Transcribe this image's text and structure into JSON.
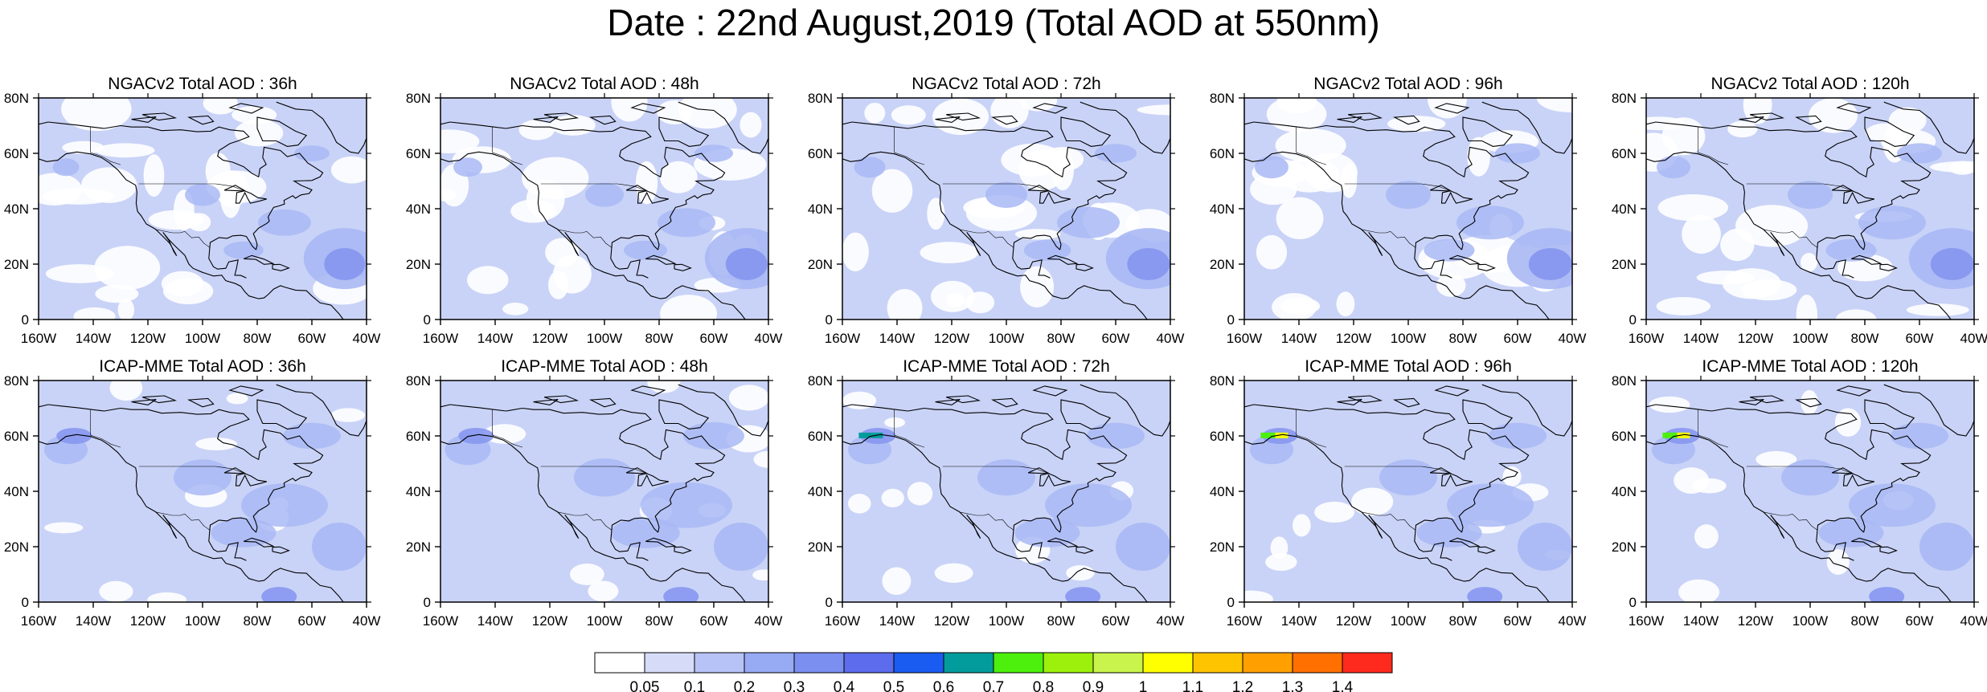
{
  "title": "Date : 22nd August,2019 (Total AOD at 550nm)",
  "panels": [
    {
      "title": "NGACv2 Total AOD : 36h",
      "model": "NGACv2",
      "lead": "36h",
      "hotspots": [],
      "intensity": 0.55
    },
    {
      "title": "NGACv2 Total AOD : 48h",
      "model": "NGACv2",
      "lead": "48h",
      "hotspots": [],
      "intensity": 0.6
    },
    {
      "title": "NGACv2 Total AOD : 72h",
      "model": "NGACv2",
      "lead": "72h",
      "hotspots": [],
      "intensity": 0.65
    },
    {
      "title": "NGACv2 Total AOD : 96h",
      "model": "NGACv2",
      "lead": "96h",
      "hotspots": [],
      "intensity": 0.7
    },
    {
      "title": "NGACv2 Total AOD : 120h",
      "model": "NGACv2",
      "lead": "120h",
      "hotspots": [],
      "intensity": 0.7
    },
    {
      "title": "ICAP-MME Total AOD : 36h",
      "model": "ICAP-MME",
      "lead": "36h",
      "hotspots": [],
      "intensity": 0.9
    },
    {
      "title": "ICAP-MME Total AOD : 48h",
      "model": "ICAP-MME",
      "lead": "48h",
      "hotspots": [],
      "intensity": 0.95
    },
    {
      "title": "ICAP-MME Total AOD : 72h",
      "model": "ICAP-MME",
      "lead": "72h",
      "hotspots": [
        "teal"
      ],
      "intensity": 0.9
    },
    {
      "title": "ICAP-MME Total AOD : 96h",
      "model": "ICAP-MME",
      "lead": "96h",
      "hotspots": [
        "green",
        "yellow"
      ],
      "intensity": 0.9
    },
    {
      "title": "ICAP-MME Total AOD : 120h",
      "model": "ICAP-MME",
      "lead": "120h",
      "hotspots": [
        "green",
        "yellow"
      ],
      "intensity": 0.9
    }
  ],
  "axes": {
    "x_ticks": [
      "160W",
      "140W",
      "120W",
      "100W",
      "80W",
      "60W",
      "40W"
    ],
    "y_ticks": [
      "80N",
      "60N",
      "40N",
      "20N",
      "0"
    ],
    "lon_range": [
      -160,
      -40
    ],
    "lat_range": [
      0,
      80
    ]
  },
  "colorbar": {
    "colors": [
      "#ffffff",
      "#d6dcf8",
      "#b7c3f6",
      "#97aaf4",
      "#7b8ff0",
      "#5c6cec",
      "#1a5cf2",
      "#039c9c",
      "#4cf00c",
      "#9cf00c",
      "#c8f44c",
      "#ffff00",
      "#ffc400",
      "#ffa000",
      "#ff7000",
      "#ff2a1e"
    ],
    "labels": [
      "0.05",
      "0.1",
      "0.2",
      "0.3",
      "0.4",
      "0.5",
      "0.6",
      "0.7",
      "0.8",
      "0.9",
      "1",
      "1.1",
      "1.2",
      "1.3",
      "1.4"
    ]
  },
  "map_colors": {
    "ocean_bg": "#dfe5fa",
    "low": "#ffffff",
    "mid": "#c9d3f7",
    "high": "#a9b8f4",
    "peak": "#8797ef",
    "coast": "#000000"
  }
}
